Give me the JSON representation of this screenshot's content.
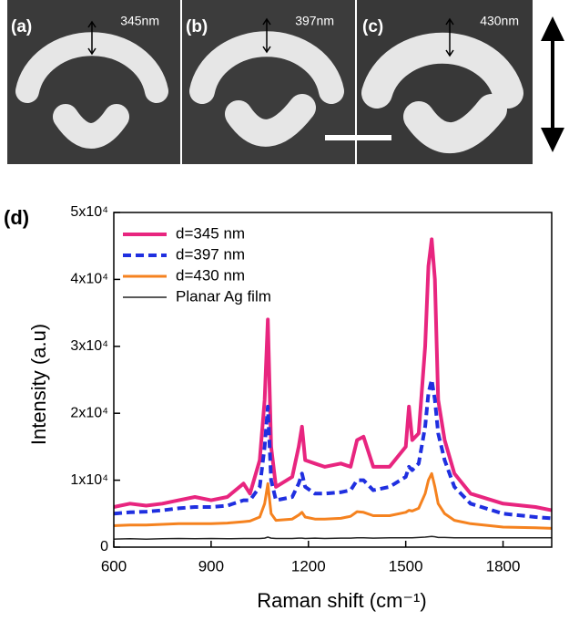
{
  "images": [
    {
      "label": "(a)",
      "size": "345nm"
    },
    {
      "label": "(b)",
      "size": "397nm"
    },
    {
      "label": "(c)",
      "size": "430nm"
    }
  ],
  "chart_data": {
    "type": "line",
    "panel_label": "(d)",
    "x_label": "Raman shift (cm⁻¹)",
    "y_label": "Intensity (a.u)",
    "xlim": [
      600,
      1950
    ],
    "xticks": [
      600,
      900,
      1200,
      1500,
      1800
    ],
    "ylim": [
      0,
      50000
    ],
    "yticks": [
      0,
      {
        "value": 10000,
        "label": "1x10⁴"
      },
      {
        "value": 20000,
        "label": "2x10⁴"
      },
      {
        "value": 30000,
        "label": "3x10⁴"
      },
      {
        "value": 40000,
        "label": "4x10⁴"
      },
      {
        "value": 50000,
        "label": "5x10⁴"
      }
    ],
    "legend": "upper-left",
    "x": [
      600,
      650,
      700,
      750,
      800,
      850,
      900,
      950,
      1000,
      1020,
      1050,
      1065,
      1075,
      1085,
      1100,
      1150,
      1170,
      1180,
      1190,
      1220,
      1250,
      1300,
      1330,
      1350,
      1370,
      1400,
      1450,
      1500,
      1510,
      1520,
      1540,
      1560,
      1570,
      1580,
      1590,
      1600,
      1620,
      1650,
      1700,
      1800,
      1900,
      1950
    ],
    "series": [
      {
        "name": "d=345 nm",
        "color": "#e8257f",
        "style": "solid",
        "width": 4,
        "values": [
          6000,
          6500,
          6200,
          6500,
          7000,
          7500,
          7000,
          7500,
          9500,
          8000,
          13000,
          22000,
          34000,
          15000,
          9000,
          10500,
          15000,
          18000,
          13000,
          12500,
          12000,
          12500,
          12000,
          16000,
          16500,
          12000,
          12000,
          15000,
          21000,
          16000,
          17000,
          30000,
          42000,
          46000,
          40000,
          22000,
          16000,
          11000,
          8000,
          6500,
          6000,
          5500
        ]
      },
      {
        "name": "d=397 nm",
        "color": "#1f2fe0",
        "style": "dashed",
        "width": 4,
        "values": [
          5000,
          5200,
          5300,
          5500,
          5800,
          6000,
          6000,
          6200,
          7000,
          7000,
          9000,
          15000,
          21000,
          10000,
          7000,
          7500,
          9500,
          11000,
          9000,
          8000,
          8000,
          8200,
          8500,
          10000,
          10000,
          8500,
          9000,
          10500,
          12000,
          11500,
          12500,
          18000,
          23000,
          25000,
          22000,
          17000,
          13000,
          9000,
          6500,
          5000,
          4500,
          4300
        ]
      },
      {
        "name": "d=430 nm",
        "color": "#f5821f",
        "style": "solid",
        "width": 3,
        "values": [
          3200,
          3300,
          3300,
          3400,
          3500,
          3500,
          3500,
          3600,
          3800,
          3900,
          4500,
          6500,
          9500,
          5000,
          4000,
          4200,
          4800,
          5200,
          4500,
          4200,
          4200,
          4300,
          4600,
          5300,
          5200,
          4700,
          4700,
          5200,
          5500,
          5400,
          5800,
          8000,
          10000,
          11000,
          9000,
          6500,
          5000,
          4000,
          3500,
          3000,
          2900,
          2800
        ]
      },
      {
        "name": "Planar Ag film",
        "color": "#222222",
        "style": "solid",
        "width": 1.5,
        "values": [
          1200,
          1250,
          1200,
          1250,
          1300,
          1250,
          1300,
          1250,
          1300,
          1300,
          1300,
          1350,
          1500,
          1350,
          1300,
          1300,
          1350,
          1350,
          1300,
          1350,
          1300,
          1350,
          1350,
          1400,
          1400,
          1350,
          1400,
          1400,
          1400,
          1400,
          1450,
          1500,
          1550,
          1600,
          1550,
          1450,
          1450,
          1400,
          1400,
          1400,
          1400,
          1400
        ]
      }
    ]
  }
}
